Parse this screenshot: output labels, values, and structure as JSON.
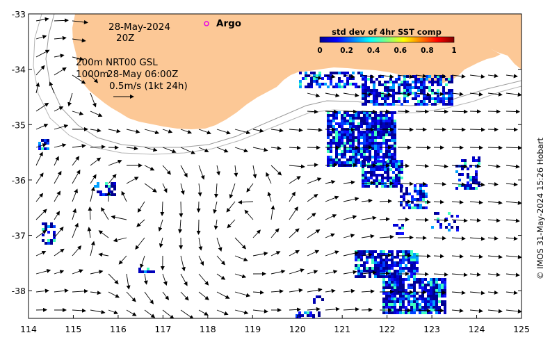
{
  "map": {
    "date": "28-May-2024",
    "time": "20Z",
    "depth_label": "200m",
    "depth_label_2": "1000m",
    "product": "NRT00 GSL",
    "currents_time": "28-May 06:00Z",
    "scale_arrow_label": "0.5m/s (1kt 24h)",
    "argo_label": "Argo",
    "credit": "© IMOS 31-May-2024 15:26 Hobart",
    "lon_ticks": [
      "114",
      "115",
      "116",
      "117",
      "118",
      "119",
      "120",
      "121",
      "122",
      "123",
      "124",
      "125"
    ],
    "lat_ticks": [
      "-33",
      "-34",
      "-35",
      "-36",
      "-37",
      "-38"
    ],
    "lon_range": [
      114,
      125
    ],
    "lat_range": [
      -38.5,
      -33
    ],
    "land_color": "#fcc896",
    "argo_color": "#e800e8",
    "argo_position": {
      "lon": 118.0,
      "lat": -33.2
    }
  },
  "colorbar": {
    "title": "std dev of 4hr SST comp",
    "ticks": [
      "0",
      "0.2",
      "0.4",
      "0.6",
      "0.8",
      "1"
    ],
    "range": [
      0,
      1
    ],
    "colors": [
      "#00008f",
      "#0000ff",
      "#0080ff",
      "#00ffff",
      "#80ff80",
      "#ffff00",
      "#ff8000",
      "#ff0000",
      "#800000"
    ]
  }
}
